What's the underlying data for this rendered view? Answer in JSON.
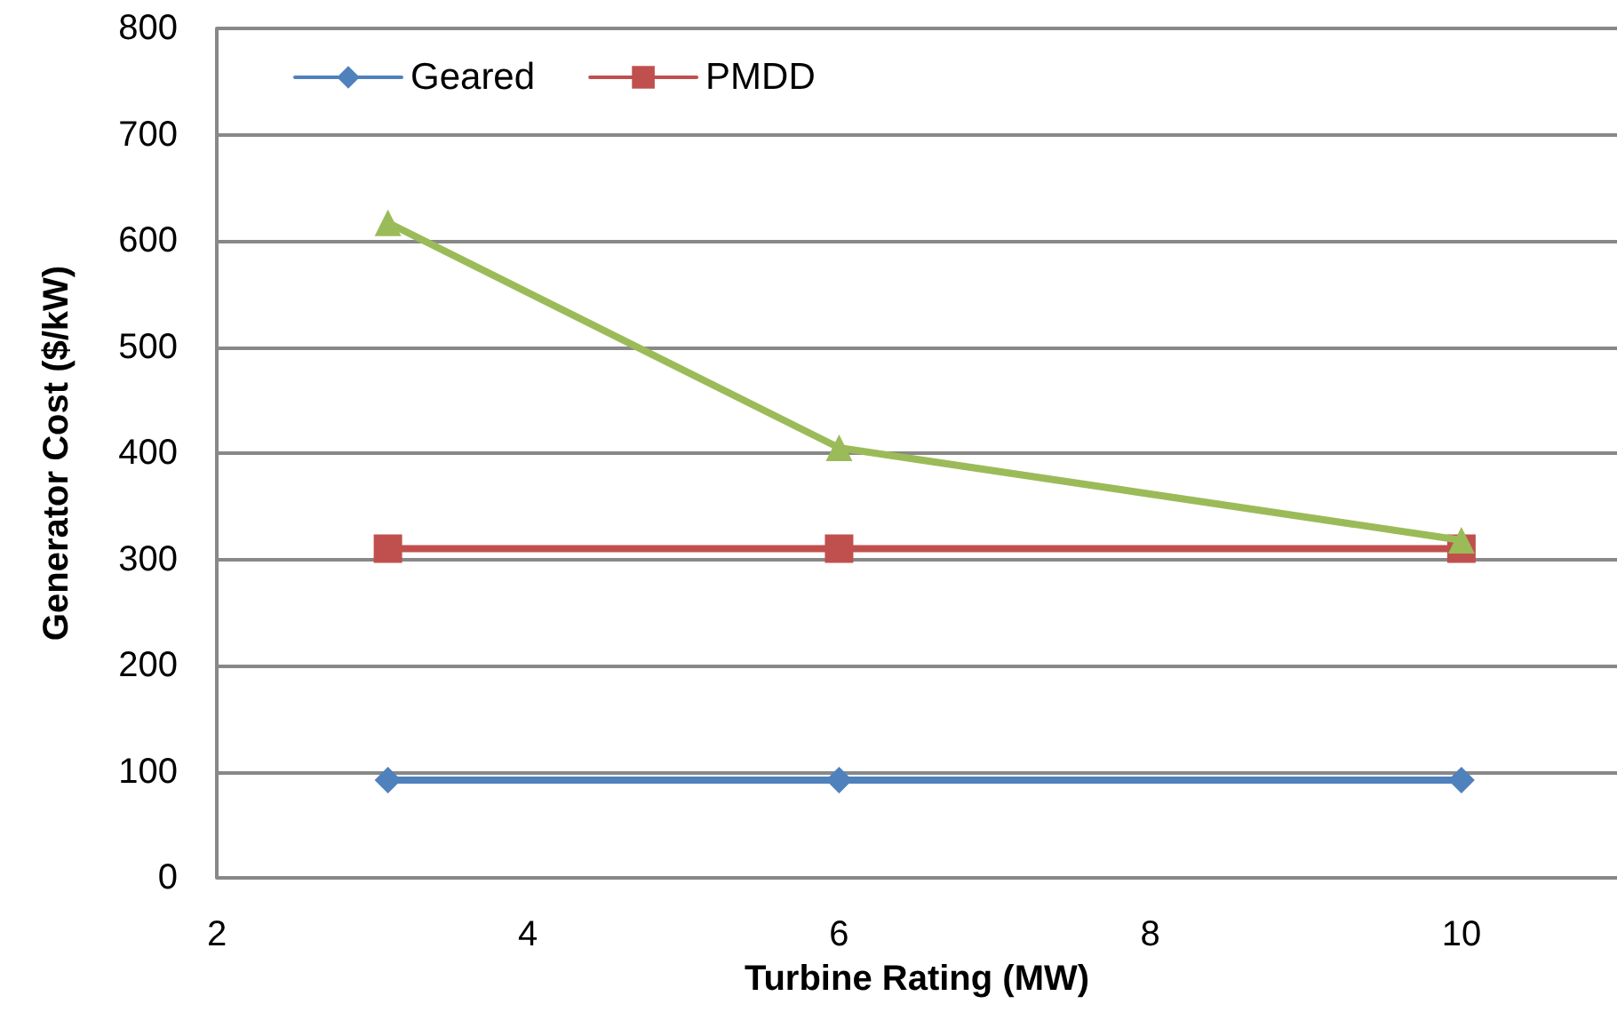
{
  "chart_data": {
    "type": "line",
    "xlabel": "Turbine Rating (MW)",
    "ylabel": "Generator Cost ($/kW)",
    "x": [
      3.1,
      6,
      10
    ],
    "series": [
      {
        "name": "Geared",
        "color": "#4f81bd",
        "marker": "diamond",
        "values": [
          92,
          92,
          92
        ]
      },
      {
        "name": "PMDD",
        "color": "#c0504d",
        "marker": "square",
        "values": [
          310,
          310,
          310
        ]
      },
      {
        "color": "#9bbb59",
        "marker": "triangle",
        "values": [
          617,
          405,
          318
        ]
      }
    ],
    "xlim": [
      2,
      11
    ],
    "xticks": [
      2,
      4,
      6,
      8,
      10
    ],
    "ylim": [
      0,
      800
    ],
    "yticks": [
      0,
      100,
      200,
      300,
      400,
      500,
      600,
      700,
      800
    ],
    "grid": "y",
    "legend": "top left",
    "line_style": "solid"
  }
}
